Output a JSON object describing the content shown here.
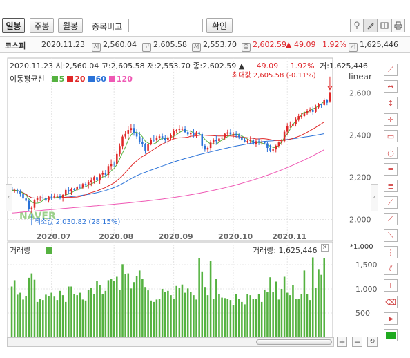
{
  "toolbar": {
    "period_buttons": [
      "일봉",
      "주봉",
      "월봉"
    ],
    "compare_label": "종목비교",
    "compare_value": "",
    "confirm_label": "확인"
  },
  "quote_bar": {
    "name": "코스피",
    "date": "2020.11.23",
    "open_icon": "시",
    "open": "2,560.04",
    "high_icon": "고",
    "high": "2,605.58",
    "low_icon": "저",
    "low": "2,553.70",
    "close_icon": "종",
    "close": "2,602.59",
    "change": "▲ 49.09",
    "change_pct": "1.92%",
    "volume_icon": "거",
    "volume": "1,625,446"
  },
  "info_line": {
    "text": "2020.11.23 시:2,560.04 고:2,605.58 저:2,553.70 종:2,602.59 ▲",
    "change": "49.09",
    "pct": "1.92%",
    "vol": "거:1,625,446"
  },
  "ma_legend": {
    "title": "이동평균선",
    "items": [
      {
        "label": "5",
        "color": "#55b240"
      },
      {
        "label": "20",
        "color": "#e02828"
      },
      {
        "label": "60",
        "color": "#2a72d8"
      },
      {
        "label": "120",
        "color": "#ef58b4"
      }
    ]
  },
  "scale_label": "linear",
  "volume_panel_title": "거래량",
  "volume_info": "거래량: 1,625,446",
  "volume_multiplier": "*1,000",
  "watermark": "NAVER",
  "colors": {
    "up": "#e02828",
    "down": "#2a72d8",
    "volume": "#55b240"
  },
  "chart_data": {
    "type": "candlestick",
    "title": "코스피",
    "x_ticks": [
      "2020.07",
      "2020.08",
      "2020.09",
      "2020.10",
      "2020.11"
    ],
    "x_tick_days": [
      14,
      36,
      57,
      78,
      97
    ],
    "price_yticks": [
      2000,
      2200,
      2400,
      2600
    ],
    "price_ylim": [
      1900,
      2700
    ],
    "volume_yticks": [
      500,
      1000,
      1500
    ],
    "volume_ylim": [
      0,
      1800
    ],
    "annotations": {
      "max_label": "최대값 2,605.58 (-0.11%)",
      "max_value": 2605.58,
      "min_label": "최소값 2,030.82 (28.15%)",
      "min_value": 2030.82
    },
    "candles": [
      [
        2155.78,
        2165.63,
        2124.19,
        2138.08
      ],
      [
        2138.07,
        2146.61,
        2126.86,
        2138.42
      ],
      [
        2138.42,
        2146.82,
        2124.34,
        2132.67
      ],
      [
        2132.67,
        2141.29,
        2107.95,
        2121.79
      ],
      [
        2121.79,
        2127.9,
        2089.29,
        2099.49
      ],
      [
        2099.49,
        2106.99,
        2080.98,
        2088.35
      ],
      [
        2088.35,
        2096.2,
        2039.14,
        2049.37
      ],
      [
        2049.37,
        2063.22,
        2030.82,
        2055.21
      ],
      [
        2055.21,
        2097.31,
        2044.63,
        2090.68
      ],
      [
        2090.68,
        2111.8,
        2080.01,
        2101.37
      ],
      [
        2101.37,
        2113.58,
        2086.14,
        2102.96
      ],
      [
        2102.96,
        2118.73,
        2093.57,
        2102.29
      ],
      [
        2102.29,
        2113.62,
        2083.84,
        2089.46
      ],
      [
        2089.46,
        2113.41,
        2079.47,
        2108.01
      ],
      [
        2108.01,
        2123.46,
        2092.97,
        2104.16
      ],
      [
        2104.16,
        2124.11,
        2098.91,
        2109.77
      ],
      [
        2109.77,
        2120.98,
        2103.21,
        2111.16
      ],
      [
        2111.16,
        2121.14,
        2095.1,
        2101.42
      ],
      [
        2101.42,
        2121.84,
        2085.13,
        2116.34
      ],
      [
        2116.34,
        2147.55,
        2108.77,
        2139.71
      ],
      [
        2139.71,
        2152.81,
        2118.61,
        2132.09
      ],
      [
        2132.09,
        2150.51,
        2116.54,
        2142.84
      ],
      [
        2142.84,
        2149.46,
        2134.23,
        2141.07
      ],
      [
        2141.07,
        2159.39,
        2135.58,
        2154.32
      ],
      [
        2154.32,
        2168.13,
        2145.56,
        2151.09
      ],
      [
        2151.09,
        2172.5,
        2143.66,
        2168.01
      ],
      [
        2168.01,
        2174.72,
        2153.38,
        2162.96
      ],
      [
        2162.96,
        2188.54,
        2147.33,
        2176.18
      ],
      [
        2176.18,
        2199.36,
        2158.28,
        2184.13
      ],
      [
        2184.13,
        2209.25,
        2169.7,
        2200.83
      ],
      [
        2200.83,
        2206.48,
        2171.62,
        2184.77
      ],
      [
        2184.77,
        2216.48,
        2168.9,
        2212.7
      ],
      [
        2212.7,
        2232.27,
        2201.69,
        2221.09
      ],
      [
        2221.09,
        2234.34,
        2200.48,
        2211.7
      ],
      [
        2211.7,
        2262.02,
        2197.15,
        2253.08
      ],
      [
        2253.08,
        2285.3,
        2234.98,
        2263.43
      ],
      [
        2263.43,
        2274.8,
        2251.27,
        2261.27
      ],
      [
        2261.27,
        2322.4,
        2253.41,
        2310.37
      ],
      [
        2310.37,
        2360.55,
        2298.28,
        2348.43
      ],
      [
        2348.43,
        2402.6,
        2331.79,
        2393.26
      ],
      [
        2393.26,
        2421.37,
        2382.85,
        2405.5
      ],
      [
        2405.5,
        2443.58,
        2379.4,
        2424.37
      ],
      [
        2424.37,
        2452.15,
        2409.38,
        2433.58
      ],
      [
        2433.58,
        2452.77,
        2397.38,
        2410.7
      ],
      [
        2410.7,
        2428.63,
        2381.87,
        2393.41
      ],
      [
        2393.41,
        2415.09,
        2355.61,
        2367.63
      ],
      [
        2367.63,
        2386.28,
        2344.18,
        2357.23
      ],
      [
        2357.23,
        2362.69,
        2311.28,
        2326.5
      ],
      [
        2326.5,
        2365.18,
        2311.03,
        2357.06
      ],
      [
        2357.06,
        2388.94,
        2351.72,
        2377.44
      ],
      [
        2377.44,
        2398.89,
        2367.46,
        2375.44
      ],
      [
        2375.44,
        2396.14,
        2364.62,
        2387.56
      ],
      [
        2387.56,
        2404.14,
        2379.63,
        2394.39
      ],
      [
        2394.39,
        2406.67,
        2375.7,
        2387.15
      ],
      [
        2387.15,
        2400.21,
        2363.49,
        2376.99
      ],
      [
        2376.99,
        2396.61,
        2357.6,
        2389.35
      ],
      [
        2389.35,
        2407.53,
        2373.28,
        2399.21
      ],
      [
        2399.21,
        2430.12,
        2382.69,
        2419.47
      ],
      [
        2419.47,
        2429.46,
        2407.08,
        2424.84
      ],
      [
        2424.84,
        2447.23,
        2412.58,
        2427.53
      ],
      [
        2427.53,
        2439.24,
        2417.13,
        2429.16
      ],
      [
        2429.16,
        2441.66,
        2408.68,
        2414.07
      ],
      [
        2414.07,
        2423.3,
        2395.31,
        2403.84
      ],
      [
        2403.84,
        2424.21,
        2387.64,
        2408.8
      ],
      [
        2408.8,
        2428.74,
        2389.23,
        2398.8
      ],
      [
        2398.8,
        2419.29,
        2385.69,
        2412.75
      ],
      [
        2412.75,
        2421.86,
        2395.42,
        2404.87
      ],
      [
        2404.87,
        2413.15,
        2337.55,
        2349.56
      ],
      [
        2349.56,
        2356.37,
        2321.03,
        2331.84
      ],
      [
        2331.84,
        2347.3,
        2319.68,
        2339.16
      ],
      [
        2339.16,
        2378.4,
        2327.29,
        2364.51
      ],
      [
        2364.51,
        2384.52,
        2355.19,
        2376.93
      ],
      [
        2376.93,
        2398.13,
        2354.48,
        2371.26
      ],
      [
        2371.26,
        2396.38,
        2351.58,
        2383.81
      ],
      [
        2383.81,
        2401.3,
        2363.72,
        2389.07
      ],
      [
        2389.07,
        2410.26,
        2377.18,
        2406.38
      ],
      [
        2406.38,
        2425.46,
        2395.61,
        2412.89
      ],
      [
        2412.89,
        2429.74,
        2400.42,
        2403.73
      ],
      [
        2403.73,
        2415.14,
        2388.95,
        2405.53
      ],
      [
        2405.53,
        2417.88,
        2388.54,
        2397.61
      ],
      [
        2397.61,
        2407.49,
        2381.34,
        2390.54
      ],
      [
        2390.54,
        2397.81,
        2373.18,
        2378.85
      ],
      [
        2378.85,
        2388.75,
        2364.66,
        2369.52
      ],
      [
        2369.52,
        2382.22,
        2360.49,
        2371.85
      ],
      [
        2371.85,
        2394.22,
        2361.88,
        2375.83
      ],
      [
        2375.83,
        2384.59,
        2353.58,
        2358.45
      ],
      [
        2358.45,
        2380.12,
        2343.76,
        2370.75
      ],
      [
        2370.75,
        2384.13,
        2352.97,
        2367.63
      ],
      [
        2367.63,
        2376.35,
        2354.18,
        2368.29
      ],
      [
        2368.29,
        2372.13,
        2355.16,
        2360.69
      ],
      [
        2360.69,
        2367.65,
        2319.58,
        2339.42
      ],
      [
        2339.42,
        2354.28,
        2319.1,
        2326.82
      ],
      [
        2326.82,
        2346.29,
        2317.43,
        2332.32
      ],
      [
        2332.32,
        2354.44,
        2318.14,
        2349.16
      ],
      [
        2349.16,
        2370.11,
        2340.84,
        2365.09
      ],
      [
        2365.09,
        2381.16,
        2353.24,
        2371.28
      ],
      [
        2371.28,
        2424.79,
        2364.55,
        2416.1
      ],
      [
        2416.1,
        2456.78,
        2401.37,
        2442.58
      ],
      [
        2442.58,
        2464.81,
        2434.01,
        2445.03
      ],
      [
        2445.03,
        2474.11,
        2438.86,
        2452.6
      ],
      [
        2452.6,
        2483.25,
        2440.66,
        2475.23
      ],
      [
        2475.23,
        2500.44,
        2465.45,
        2489.95
      ],
      [
        2489.95,
        2504.2,
        2477.48,
        2490.19
      ],
      [
        2490.19,
        2510.47,
        2483.19,
        2502.71
      ],
      [
        2502.71,
        2524.22,
        2493.55,
        2515.2
      ],
      [
        2515.2,
        2531.21,
        2508.29,
        2520.33
      ],
      [
        2520.33,
        2535.15,
        2495.41,
        2510.22
      ],
      [
        2510.22,
        2544.21,
        2505.58,
        2531.5
      ],
      [
        2531.5,
        2552.53,
        2526.53,
        2545.69
      ],
      [
        2545.69,
        2549.54,
        2529.69,
        2543.03
      ],
      [
        2543.03,
        2574.42,
        2538.56,
        2566.16
      ],
      [
        2566.16,
        2571.57,
        2542.04,
        2553.5
      ],
      [
        2560.04,
        2605.58,
        2553.7,
        2602.59
      ]
    ],
    "ma5": [
      2138.08,
      2138.25,
      2136.39,
      2132.74,
      2124.09,
      2116.14,
      2098.22,
      2082.74,
      2076.62,
      2076.92,
      2079.92,
      2090.33,
      2100.15,
      2100.77,
      2101.18,
      2102.74,
      2104.92,
      2106.91,
      2108.37,
      2115.28,
      2121.69,
      2126.31,
      2134.33,
      2142.01,
      2144.07,
      2151.65,
      2155.69,
      2162.51,
      2168.47,
      2174.63,
      2181.78,
      2191.73,
      2200.7,
      2206.26,
      2216.68,
      2230.42,
      2242.12,
      2259.97,
      2287.32,
      2315.35,
      2343.74,
      2376.39,
      2401.03,
      2413.49,
      2413.45,
      2405.94,
      2392.51,
      2371.11,
      2362.37,
      2357.07,
      2358.73,
      2364.73,
      2378.38,
      2384.41,
      2384.31,
      2384.67,
      2389.44,
      2394.24,
      2401.97,
      2412.61,
      2420.04,
      2422.96,
      2420.67,
      2418.22,
      2410.77,
      2409.65,
      2407.21,
      2395.76,
      2379.53,
      2367.64,
      2357.64,
      2359.22,
      2356.34,
      2367.14,
      2377.11,
      2385.49,
      2392.72,
      2399.21,
      2403.35,
      2404.23,
      2403.14,
      2396.41,
      2387.27,
      2381.61,
      2374.04,
      2369.01,
      2364.59,
      2365.08,
      2362.76,
      2358.51,
      2354.16,
      2347.61,
      2341.51,
      2341.38,
      2350.3,
      2367.99,
      2388.56,
      2406.24,
      2427.85,
      2450.87,
      2466.76,
      2481.28,
      2496.2,
      2509.26,
      2507.27,
      2515.93,
      2524.57,
      2530.15,
      2539.33,
      2547.99,
      2561.09
    ],
    "ma20": [
      2138.08,
      2138.25,
      2136.39,
      2132.74,
      2126.09,
      2119.76,
      2109.68,
      2102.69,
      2101.79,
      2101.75,
      2101.86,
      2101.89,
      2101.09,
      2101.6,
      2101.83,
      2102.33,
      2102.85,
      2102.79,
      2103.51,
      2105.33,
      2105.42,
      2105.09,
      2105.51,
      2106.14,
      2108.72,
      2111.99,
      2117.42,
      2123.47,
      2127.14,
      2131.27,
      2135.34,
      2140.84,
      2146.43,
      2151.61,
      2159.07,
      2166.03,
      2173.54,
      2183.97,
      2195.32,
      2208.6,
      2222.9,
      2237.51,
      2252.65,
      2266.11,
      2278.06,
      2288.9,
      2298.64,
      2306.16,
      2314.8,
      2323.63,
      2333.16,
      2341.35,
      2350.31,
      2357.26,
      2363.46,
      2369.73,
      2376.33,
      2381.81,
      2385.64,
      2387.35,
      2387.8,
      2388.79,
      2390.14,
      2395.05,
      2395.33,
      2396.81,
      2399.19,
      2400.34,
      2399.55,
      2398.39,
      2397.96,
      2397.2,
      2396.3,
      2396.14,
      2395.72,
      2396.07,
      2396.6,
      2395.92,
      2394.96,
      2393.1,
      2391.91,
      2390.64,
      2389.42,
      2387.55,
      2386.13,
      2385.05,
      2381.94,
      2382.09,
      2383.24,
      2382.9,
      2381.33,
      2378.82,
      2376.22,
      2374.77,
      2373.95,
      2373.62,
      2375.73,
      2377.67,
      2380.43,
      2384.98,
      2389.49,
      2394.03,
      2399.86,
      2406.14,
      2413.46,
      2421.0,
      2428.89,
      2436.77,
      2445.09,
      2453.55,
      2462.3
    ],
    "ma60": [
      2138.08,
      2138.25,
      2136.39,
      2132.74,
      2126.09,
      2119.76,
      2109.68,
      2102.69,
      2101.79,
      2101.75,
      2101.86,
      2101.89,
      2101.09,
      2101.6,
      2101.83,
      2102.33,
      2102.85,
      2102.79,
      2103.51,
      2105.33,
      2106.7,
      2108.32,
      2109.73,
      2111.41,
      2112.95,
      2114.98,
      2116.7,
      2118.9,
      2121.33,
      2124.3,
      2126.75,
      2130.12,
      2133.88,
      2137.11,
      2141.88,
      2146.69,
      2151.16,
      2156.76,
      2163.03,
      2170.29,
      2177.71,
      2185.58,
      2193.51,
      2200.84,
      2207.42,
      2213.5,
      2219.05,
      2223.59,
      2228.68,
      2234.02,
      2238.77,
      2243.71,
      2248.54,
      2253.53,
      2258.1,
      2262.78,
      2267.39,
      2272.07,
      2276.62,
      2280.78,
      2285.01,
      2288.69,
      2292.58,
      2296.16,
      2299.81,
      2303.64,
      2307.47,
      2310.52,
      2313.88,
      2317.17,
      2320.8,
      2323.8,
      2326.84,
      2330.13,
      2333.33,
      2336.29,
      2339.44,
      2342.51,
      2345.54,
      2348.25,
      2350.96,
      2353.38,
      2355.77,
      2358.25,
      2360.78,
      2362.75,
      2364.94,
      2366.81,
      2368.72,
      2370.28,
      2371.27,
      2372.04,
      2373.04,
      2374.35,
      2375.59,
      2376.32,
      2377.96,
      2379.78,
      2381.38,
      2382.99,
      2384.71,
      2386.64,
      2388.54,
      2390.69,
      2392.89,
      2394.91,
      2397.06,
      2399.27,
      2401.5,
      2403.91,
      2406.72
    ],
    "ma120": [
      2030.0,
      2031.24,
      2032.47,
      2033.7,
      2034.92,
      2036.13,
      2037.34,
      2038.54,
      2039.74,
      2040.93,
      2042.12,
      2043.3,
      2044.47,
      2045.64,
      2046.8,
      2047.96,
      2049.11,
      2050.26,
      2051.4,
      2052.54,
      2053.67,
      2054.8,
      2055.93,
      2057.06,
      2058.18,
      2059.31,
      2060.44,
      2061.57,
      2062.71,
      2063.85,
      2064.99,
      2066.15,
      2067.31,
      2068.48,
      2069.66,
      2070.86,
      2072.08,
      2073.31,
      2074.56,
      2075.83,
      2077.13,
      2078.45,
      2079.79,
      2081.17,
      2082.57,
      2084.0,
      2085.47,
      2086.97,
      2088.5,
      2090.08,
      2091.69,
      2093.35,
      2095.04,
      2096.79,
      2098.58,
      2100.42,
      2102.31,
      2104.25,
      2106.25,
      2108.3,
      2110.42,
      2112.59,
      2114.82,
      2117.12,
      2119.48,
      2121.91,
      2124.41,
      2126.98,
      2129.63,
      2132.34,
      2135.14,
      2138.01,
      2140.96,
      2144.0,
      2147.12,
      2150.32,
      2153.61,
      2156.99,
      2160.46,
      2164.03,
      2167.69,
      2171.44,
      2175.29,
      2179.25,
      2183.3,
      2187.46,
      2191.73,
      2196.1,
      2200.58,
      2205.18,
      2209.89,
      2214.71,
      2219.65,
      2224.72,
      2229.9,
      2235.21,
      2240.64,
      2246.2,
      2251.89,
      2257.7,
      2263.65,
      2269.73,
      2275.95,
      2282.3,
      2288.78,
      2295.41,
      2302.18,
      2309.09,
      2316.14,
      2323.34,
      2330.68
    ],
    "volume": [
      1050,
      1180,
      880,
      920,
      780,
      850,
      1230,
      1320,
      1190,
      730,
      790,
      770,
      880,
      850,
      920,
      840,
      770,
      960,
      870,
      730,
      1050,
      1050,
      890,
      870,
      920,
      780,
      760,
      980,
      1020,
      900,
      1160,
      1080,
      900,
      960,
      1180,
      1200,
      1170,
      1250,
      980,
      1510,
      1310,
      1320,
      1010,
      1140,
      1270,
      1380,
      1210,
      1040,
      970,
      760,
      730,
      780,
      790,
      1000,
      930,
      960,
      870,
      800,
      1060,
      1020,
      1090,
      920,
      1010,
      930,
      870,
      780,
      1630,
      1360,
      1040,
      870,
      1580,
      790,
      1200,
      900,
      820,
      810,
      800,
      770,
      670,
      900,
      800,
      730,
      680,
      890,
      870,
      790,
      800,
      890,
      730,
      980,
      940,
      1240,
      930,
      1150,
      780,
      1000,
      1250,
      920,
      870,
      1080,
      790,
      790,
      900,
      1380,
      900,
      770,
      1650,
      1020,
      1410,
      1290,
      1630
    ]
  }
}
